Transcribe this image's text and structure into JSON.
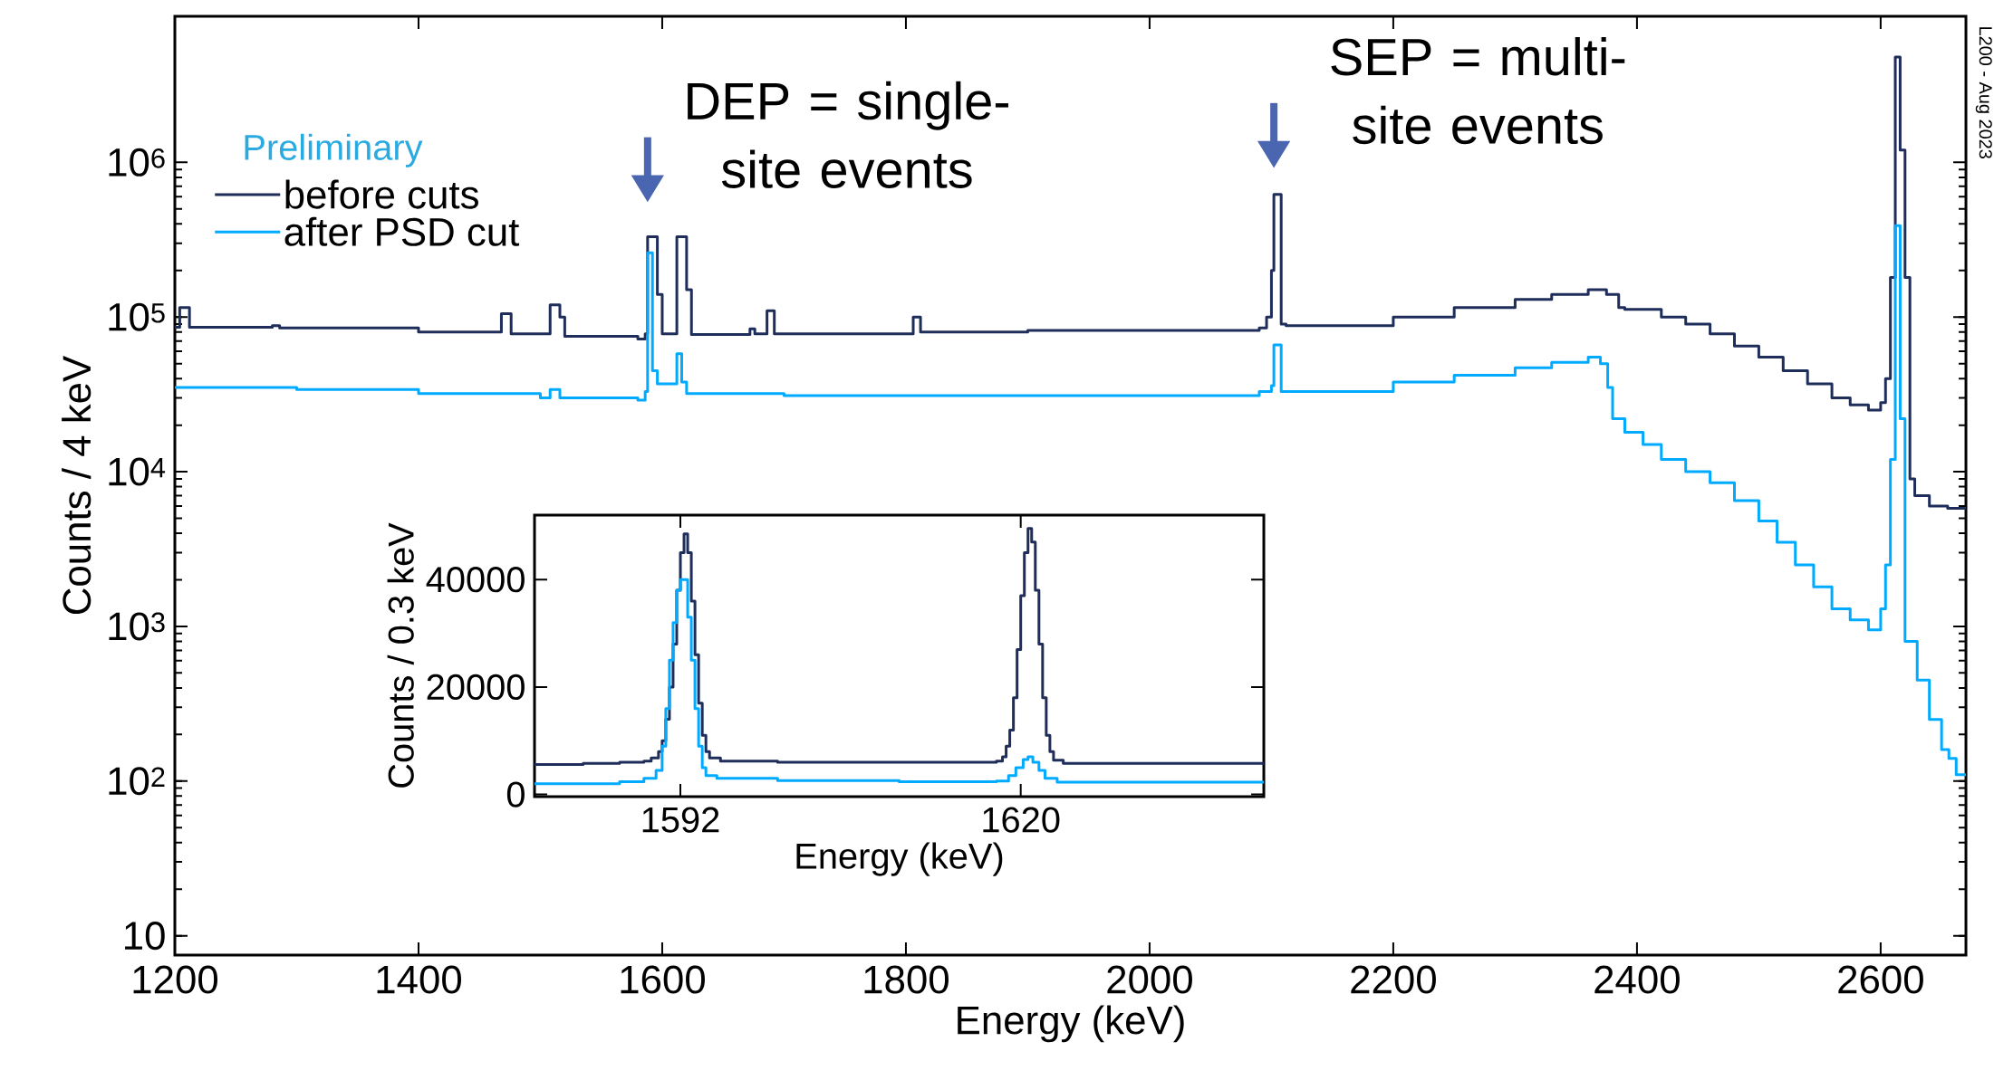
{
  "chart_data": [
    {
      "type": "step",
      "xlabel": "Energy (keV)",
      "ylabel": "Counts / 4 keV",
      "log": "y",
      "legend": "top left",
      "xlim": [
        1200,
        2670
      ],
      "ylim": [
        7.5,
        8800000
      ],
      "xticks": [
        1200,
        1400,
        1600,
        1800,
        2000,
        2200,
        2400,
        2600
      ],
      "yticks": [
        10,
        {
          "value": 100,
          "label": "10$^{2}$"
        },
        {
          "value": 1000,
          "label": "10$^{3}$"
        },
        {
          "value": 10000,
          "label": "10$^{4}$"
        },
        {
          "value": 100000,
          "label": "10$^{5}$"
        },
        {
          "value": 1000000,
          "label": "10$^{6}$"
        }
      ],
      "series": [
        {
          "name": "before cuts",
          "color": "#1f2d5a",
          "x": [
            1200,
            1204,
            1212,
            1280,
            1286,
            1400,
            1468,
            1476,
            1508,
            1516,
            1520,
            1580,
            1586,
            1588,
            1596,
            1600,
            1612,
            1620,
            1624,
            1672,
            1676,
            1686,
            1692,
            1806,
            1812,
            1900,
            2000,
            2090,
            2096,
            2100,
            2102,
            2108,
            2112,
            2200,
            2250,
            2300,
            2330,
            2360,
            2375,
            2385,
            2390,
            2420,
            2440,
            2460,
            2480,
            2500,
            2520,
            2540,
            2560,
            2575,
            2590,
            2600,
            2604,
            2608,
            2612,
            2616,
            2620,
            2624,
            2628,
            2640,
            2655,
            2670
          ],
          "values": [
            86000,
            115000,
            86000,
            88000,
            85000,
            80000,
            105000,
            78000,
            120000,
            100000,
            75000,
            72000,
            78000,
            330000,
            140000,
            78000,
            330000,
            150000,
            77000,
            84000,
            78000,
            110000,
            78000,
            100000,
            80000,
            82000,
            82000,
            85000,
            100000,
            200000,
            620000,
            90000,
            88000,
            100000,
            115000,
            130000,
            140000,
            150000,
            140000,
            115000,
            112000,
            100000,
            90000,
            78000,
            65000,
            55000,
            45000,
            37000,
            30000,
            27000,
            25000,
            28000,
            40000,
            180000,
            4800000,
            1200000,
            180000,
            9000,
            7000,
            6000,
            5800,
            5700
          ]
        },
        {
          "name": "after PSD cut",
          "color": "#00aaff",
          "x": [
            1200,
            1300,
            1400,
            1500,
            1508,
            1516,
            1580,
            1586,
            1588,
            1592,
            1596,
            1612,
            1616,
            1620,
            1700,
            1800,
            1900,
            2000,
            2090,
            2100,
            2102,
            2108,
            2200,
            2250,
            2300,
            2330,
            2360,
            2370,
            2376,
            2380,
            2390,
            2405,
            2420,
            2440,
            2460,
            2480,
            2500,
            2515,
            2530,
            2545,
            2560,
            2575,
            2590,
            2600,
            2604,
            2608,
            2612,
            2616,
            2620,
            2630,
            2640,
            2650,
            2656,
            2662,
            2670
          ],
          "values": [
            35000,
            34000,
            32000,
            30000,
            34000,
            30000,
            29000,
            33000,
            260000,
            45000,
            37000,
            58000,
            38000,
            32000,
            31000,
            31000,
            31000,
            31000,
            33000,
            36000,
            66000,
            33000,
            38000,
            42000,
            47000,
            51000,
            55000,
            50000,
            35000,
            22000,
            18000,
            15000,
            12000,
            10000,
            8500,
            6500,
            4800,
            3500,
            2500,
            1800,
            1300,
            1100,
            950,
            1300,
            2500,
            12000,
            390000,
            22000,
            800,
            450,
            250,
            160,
            140,
            110,
            110
          ]
        }
      ],
      "annotations": [
        {
          "text": "DEP = single-site events",
          "x": 1588,
          "y": 330000
        },
        {
          "text": "SEP = multi-site events",
          "x": 2102,
          "y": 620000
        },
        "Preliminary",
        "L200 - Aug 2023"
      ]
    },
    {
      "type": "step",
      "xlabel": "Energy (keV)",
      "ylabel": "Counts / 0.3 keV",
      "xlim": [
        1580,
        1640
      ],
      "ylim": [
        -400,
        52000
      ],
      "xticks": [
        1592,
        1620
      ],
      "yticks": [
        0,
        20000,
        40000
      ],
      "series": [
        {
          "color": "#1f2d5a",
          "x": [
            1580,
            1584,
            1587,
            1589,
            1589.6,
            1590.2,
            1590.5,
            1590.8,
            1591.1,
            1591.4,
            1591.7,
            1592.0,
            1592.3,
            1592.6,
            1592.9,
            1593.2,
            1593.5,
            1593.8,
            1594.1,
            1594.4,
            1595.3,
            1600,
            1610,
            1616,
            1618,
            1618.5,
            1618.8,
            1619.1,
            1619.4,
            1619.7,
            1620.0,
            1620.3,
            1620.6,
            1620.9,
            1621.2,
            1621.5,
            1621.8,
            1622.1,
            1622.4,
            1622.7,
            1623.5,
            1630,
            1640
          ],
          "values": [
            5600,
            5800,
            6000,
            6200,
            6800,
            8000,
            10000,
            14000,
            20000,
            28000,
            38000,
            45000,
            48500,
            45000,
            36000,
            26000,
            17000,
            11000,
            8000,
            6800,
            6200,
            6000,
            6000,
            6000,
            6200,
            7000,
            9000,
            12000,
            18000,
            27000,
            37000,
            45000,
            49500,
            47000,
            38000,
            28000,
            18000,
            11000,
            8000,
            6400,
            5800,
            5800,
            5800
          ]
        },
        {
          "color": "#00aaff",
          "x": [
            1580,
            1587,
            1589,
            1590,
            1590.5,
            1590.8,
            1591.1,
            1591.4,
            1591.7,
            1592.0,
            1592.3,
            1592.6,
            1592.9,
            1593.2,
            1593.5,
            1593.8,
            1594.1,
            1595,
            1600,
            1610,
            1618,
            1619,
            1619.6,
            1620.2,
            1620.6,
            1621,
            1621.5,
            1622,
            1623,
            1640
          ],
          "values": [
            2000,
            2400,
            3000,
            4500,
            9000,
            16000,
            25000,
            32000,
            38000,
            40000,
            40000,
            33000,
            25000,
            16000,
            9000,
            5000,
            3500,
            3000,
            2600,
            2400,
            2500,
            3500,
            5000,
            6500,
            7000,
            6000,
            4500,
            3000,
            2300,
            2200
          ]
        }
      ]
    }
  ]
}
